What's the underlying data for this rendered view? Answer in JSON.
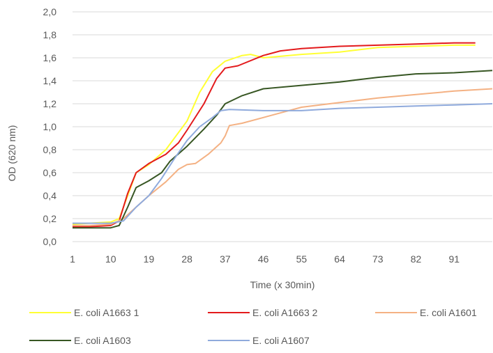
{
  "chart_data": {
    "type": "line",
    "title": "",
    "xlabel": "Time (x 30min)",
    "ylabel": "OD  (620 nm)",
    "x_ticks": [
      "1",
      "10",
      "19",
      "28",
      "37",
      "46",
      "55",
      "64",
      "73",
      "82",
      "91"
    ],
    "x_tick_values": [
      1,
      10,
      19,
      28,
      37,
      46,
      55,
      64,
      73,
      82,
      91
    ],
    "xlim": [
      1,
      100
    ],
    "y_ticks": [
      "0,0",
      "0,2",
      "0,4",
      "0,6",
      "0,8",
      "1,0",
      "1,2",
      "1,4",
      "1,6",
      "1,8",
      "2,0"
    ],
    "y_tick_values": [
      0,
      0.2,
      0.4,
      0.6,
      0.8,
      1.0,
      1.2,
      1.4,
      1.6,
      1.8,
      2.0
    ],
    "ylim": [
      0,
      2.0
    ],
    "grid": "horizontal",
    "legend_position": "bottom",
    "series": [
      {
        "name": "E. coli A1663 1",
        "color": "#FFFF33",
        "points": [
          [
            1,
            0.15
          ],
          [
            5,
            0.16
          ],
          [
            10,
            0.17
          ],
          [
            12,
            0.2
          ],
          [
            14,
            0.4
          ],
          [
            16,
            0.6
          ],
          [
            19,
            0.67
          ],
          [
            23,
            0.8
          ],
          [
            28,
            1.05
          ],
          [
            31,
            1.3
          ],
          [
            34,
            1.48
          ],
          [
            37,
            1.57
          ],
          [
            41,
            1.62
          ],
          [
            43,
            1.63
          ],
          [
            46,
            1.6
          ],
          [
            55,
            1.63
          ],
          [
            64,
            1.65
          ],
          [
            73,
            1.69
          ],
          [
            82,
            1.7
          ],
          [
            91,
            1.71
          ],
          [
            96,
            1.71
          ]
        ]
      },
      {
        "name": "E. coli A1663 2",
        "color": "#E31A1C",
        "points": [
          [
            1,
            0.13
          ],
          [
            5,
            0.13
          ],
          [
            10,
            0.14
          ],
          [
            12,
            0.18
          ],
          [
            14,
            0.42
          ],
          [
            16,
            0.6
          ],
          [
            19,
            0.68
          ],
          [
            23,
            0.76
          ],
          [
            26,
            0.86
          ],
          [
            28,
            0.97
          ],
          [
            32,
            1.2
          ],
          [
            35,
            1.42
          ],
          [
            37,
            1.51
          ],
          [
            40,
            1.53
          ],
          [
            46,
            1.62
          ],
          [
            50,
            1.66
          ],
          [
            55,
            1.68
          ],
          [
            64,
            1.7
          ],
          [
            73,
            1.71
          ],
          [
            82,
            1.72
          ],
          [
            91,
            1.73
          ],
          [
            96,
            1.73
          ]
        ]
      },
      {
        "name": "E. coli A1601",
        "color": "#F4B183",
        "points": [
          [
            1,
            0.14
          ],
          [
            5,
            0.14
          ],
          [
            10,
            0.15
          ],
          [
            13,
            0.2
          ],
          [
            16,
            0.3
          ],
          [
            19,
            0.4
          ],
          [
            23,
            0.52
          ],
          [
            26,
            0.63
          ],
          [
            28,
            0.67
          ],
          [
            30,
            0.68
          ],
          [
            33,
            0.76
          ],
          [
            36,
            0.86
          ],
          [
            37,
            0.92
          ],
          [
            38,
            1.01
          ],
          [
            41,
            1.03
          ],
          [
            46,
            1.08
          ],
          [
            50,
            1.12
          ],
          [
            55,
            1.17
          ],
          [
            64,
            1.21
          ],
          [
            73,
            1.25
          ],
          [
            82,
            1.28
          ],
          [
            91,
            1.31
          ],
          [
            100,
            1.33
          ]
        ]
      },
      {
        "name": "E. coli A1603",
        "color": "#375623",
        "points": [
          [
            1,
            0.12
          ],
          [
            5,
            0.12
          ],
          [
            10,
            0.12
          ],
          [
            12,
            0.14
          ],
          [
            14,
            0.3
          ],
          [
            16,
            0.47
          ],
          [
            19,
            0.53
          ],
          [
            22,
            0.6
          ],
          [
            24,
            0.7
          ],
          [
            28,
            0.83
          ],
          [
            32,
            0.98
          ],
          [
            35,
            1.1
          ],
          [
            37,
            1.2
          ],
          [
            41,
            1.27
          ],
          [
            46,
            1.33
          ],
          [
            55,
            1.36
          ],
          [
            64,
            1.39
          ],
          [
            73,
            1.43
          ],
          [
            82,
            1.46
          ],
          [
            91,
            1.47
          ],
          [
            100,
            1.49
          ]
        ]
      },
      {
        "name": "E. coli A1607",
        "color": "#8FAADC",
        "points": [
          [
            1,
            0.16
          ],
          [
            5,
            0.16
          ],
          [
            10,
            0.16
          ],
          [
            13,
            0.18
          ],
          [
            16,
            0.3
          ],
          [
            19,
            0.4
          ],
          [
            22,
            0.55
          ],
          [
            25,
            0.72
          ],
          [
            28,
            0.88
          ],
          [
            31,
            1.0
          ],
          [
            34,
            1.08
          ],
          [
            36,
            1.14
          ],
          [
            38,
            1.15
          ],
          [
            46,
            1.14
          ],
          [
            55,
            1.14
          ],
          [
            64,
            1.16
          ],
          [
            73,
            1.17
          ],
          [
            82,
            1.18
          ],
          [
            91,
            1.19
          ],
          [
            100,
            1.2
          ]
        ]
      }
    ]
  }
}
